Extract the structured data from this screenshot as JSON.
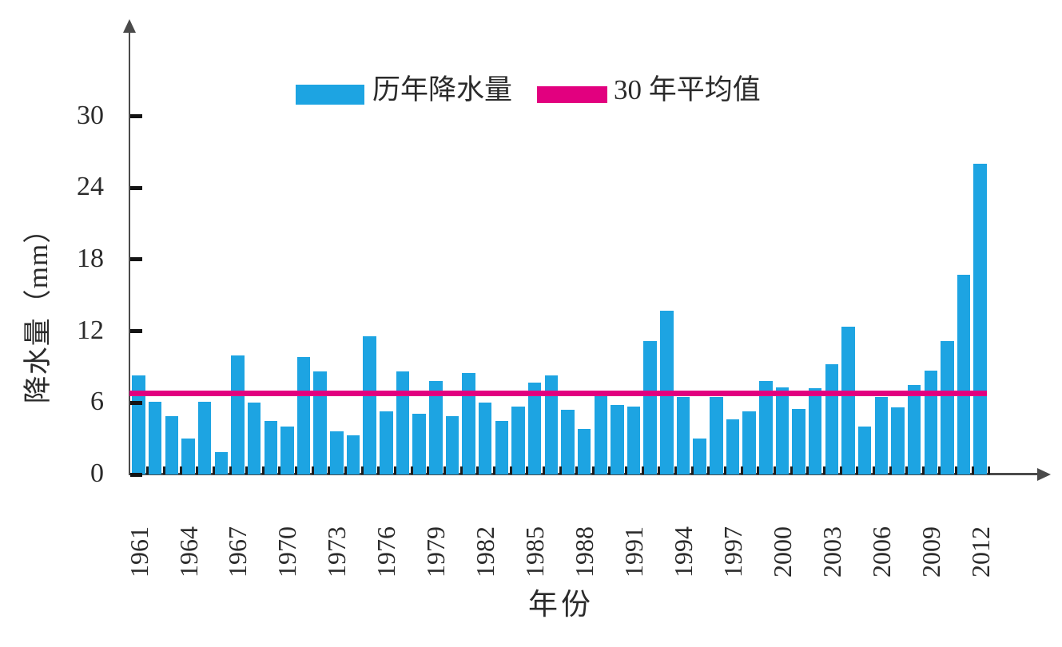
{
  "chart_data": {
    "type": "bar",
    "title": "",
    "xlabel": "年份",
    "ylabel": "降水量（mm）",
    "x": [
      1961,
      1962,
      1963,
      1964,
      1965,
      1966,
      1967,
      1968,
      1969,
      1970,
      1971,
      1972,
      1973,
      1974,
      1975,
      1976,
      1977,
      1978,
      1979,
      1980,
      1981,
      1982,
      1983,
      1984,
      1985,
      1986,
      1987,
      1988,
      1989,
      1990,
      1991,
      1992,
      1993,
      1994,
      1995,
      1996,
      1997,
      1998,
      1999,
      2000,
      2001,
      2002,
      2003,
      2004,
      2005,
      2006,
      2007,
      2008,
      2009,
      2010,
      2011,
      2012
    ],
    "series": [
      {
        "name": "历年降水量",
        "type": "bar",
        "color": "#1da4e2",
        "values": [
          8.3,
          6.1,
          4.9,
          3.0,
          6.1,
          1.9,
          10.0,
          6.0,
          4.5,
          4.0,
          9.8,
          8.6,
          3.6,
          3.3,
          11.6,
          5.3,
          8.6,
          5.1,
          7.8,
          4.9,
          8.5,
          6.0,
          4.5,
          5.7,
          7.7,
          8.3,
          5.4,
          3.8,
          6.7,
          5.8,
          5.7,
          11.2,
          13.7,
          6.5,
          3.0,
          6.5,
          4.6,
          5.3,
          7.8,
          7.3,
          5.5,
          7.2,
          9.2,
          12.4,
          4.0,
          6.5,
          5.6,
          7.5,
          8.7,
          11.2,
          16.7,
          26.0
        ]
      },
      {
        "name": "30 年平均值",
        "type": "line",
        "color": "#e2007f",
        "value": 6.8
      }
    ],
    "ylim": [
      0,
      33
    ],
    "yticks": [
      0,
      6,
      12,
      18,
      24,
      30
    ],
    "xtick_labels": [
      "1961",
      "1964",
      "1967",
      "1970",
      "1973",
      "1976",
      "1979",
      "1982",
      "1985",
      "1988",
      "1991",
      "1994",
      "1997",
      "2000",
      "2003",
      "2006",
      "2009",
      "2012"
    ],
    "xtick_label_step_years": 3,
    "grid": false,
    "legend_position": "top-center",
    "axis_color": "#4a4a4a",
    "text_color": "#2b2b2b"
  }
}
